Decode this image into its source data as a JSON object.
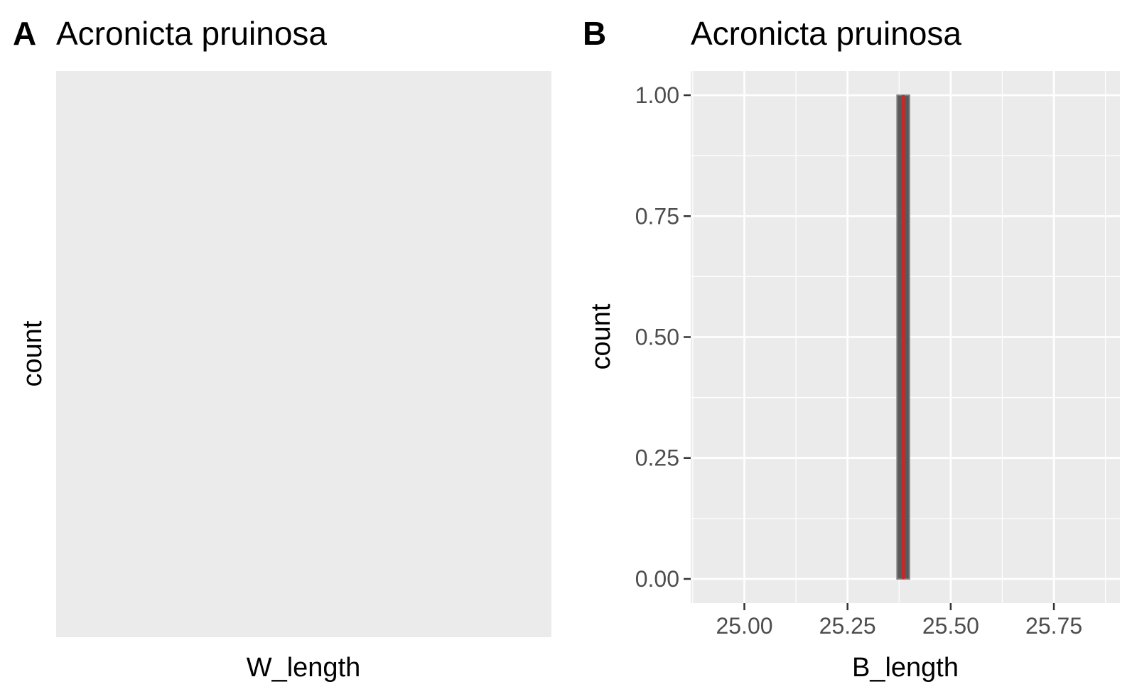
{
  "panels": [
    {
      "tag": "A",
      "title": "Acronicta pruinosa",
      "xlabel": "W_length",
      "ylabel": "count"
    },
    {
      "tag": "B",
      "title": "Acronicta pruinosa",
      "xlabel": "B_length",
      "ylabel": "count"
    }
  ],
  "chart_data": [
    {
      "type": "bar",
      "title": "Acronicta pruinosa",
      "xlabel": "W_length",
      "ylabel": "count",
      "bars": [],
      "note_empty": true,
      "grid": false,
      "colors": {
        "panel_bg": "#ebebeb"
      }
    },
    {
      "type": "bar",
      "title": "Acronicta pruinosa",
      "xlabel": "B_length",
      "ylabel": "count",
      "xlim": [
        24.87,
        25.91
      ],
      "ylim": [
        -0.05,
        1.05
      ],
      "x_ticks": [
        25.0,
        25.25,
        25.5,
        25.75
      ],
      "x_tick_labels": [
        "25.00",
        "25.25",
        "25.50",
        "25.75"
      ],
      "y_ticks": [
        0.0,
        0.25,
        0.5,
        0.75,
        1.0
      ],
      "y_tick_labels": [
        "0.00",
        "0.25",
        "0.50",
        "0.75",
        "1.00"
      ],
      "bars": [
        {
          "x_min": 25.37,
          "x_max": 25.4,
          "count": 1
        }
      ],
      "vline": {
        "x": 25.385,
        "color": "#e41a1c"
      },
      "grid": true,
      "colors": {
        "panel_bg": "#ebebeb",
        "grid": "#ffffff",
        "bar_fill": "#595959",
        "bar_outline": "#808080",
        "vline": "#e41a1c"
      }
    }
  ]
}
